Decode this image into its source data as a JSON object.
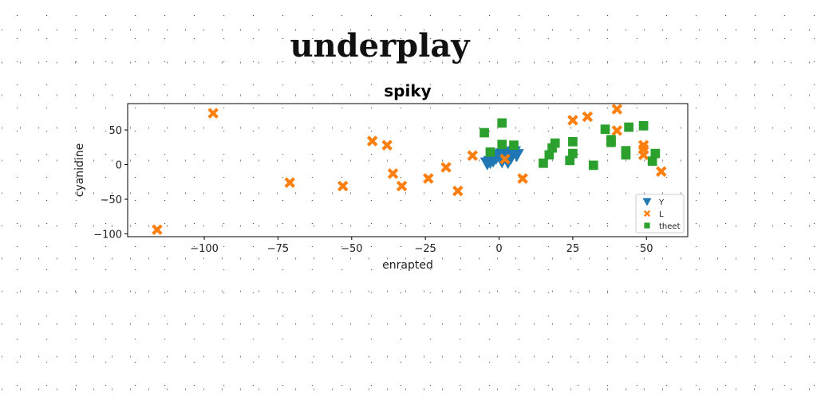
{
  "suptitle": "underplay",
  "chart_data": {
    "type": "scatter",
    "title": "spiky",
    "xlabel": "enrapted",
    "ylabel": "cyanidine",
    "xlim": [
      -126,
      64
    ],
    "ylim": [
      -104,
      88
    ],
    "xticks": [
      -100,
      -75,
      -50,
      -25,
      0,
      25,
      50
    ],
    "yticks": [
      -100,
      -50,
      0,
      50
    ],
    "legend_position": "lower-right",
    "series": [
      {
        "name": "Y",
        "marker": "triangle-down",
        "color": "#1f77b4",
        "points": [
          [
            -4,
            2
          ],
          [
            -3,
            4
          ],
          [
            -2,
            6
          ],
          [
            -1,
            10
          ],
          [
            0,
            13
          ],
          [
            1,
            15
          ],
          [
            2,
            12
          ],
          [
            3,
            16
          ],
          [
            4,
            10
          ],
          [
            5,
            18
          ],
          [
            6,
            14
          ],
          [
            3,
            4
          ],
          [
            1,
            5
          ],
          [
            -2,
            12
          ]
        ]
      },
      {
        "name": "L",
        "marker": "x",
        "color": "#ff7f0e",
        "points": [
          [
            -116,
            -94
          ],
          [
            -97,
            74
          ],
          [
            -71,
            -26
          ],
          [
            -53,
            -31
          ],
          [
            -43,
            34
          ],
          [
            -38,
            28
          ],
          [
            -36,
            -13
          ],
          [
            -33,
            -31
          ],
          [
            -24,
            -20
          ],
          [
            -18,
            -4
          ],
          [
            -14,
            -38
          ],
          [
            -9,
            13
          ],
          [
            2,
            8
          ],
          [
            8,
            -20
          ],
          [
            25,
            64
          ],
          [
            30,
            69
          ],
          [
            38,
            34
          ],
          [
            40,
            80
          ],
          [
            40,
            49
          ],
          [
            49,
            28
          ],
          [
            49,
            14
          ],
          [
            49,
            22
          ],
          [
            55,
            -10
          ]
        ]
      },
      {
        "name": "theet",
        "marker": "square",
        "color": "#2ca02c",
        "points": [
          [
            -5,
            46
          ],
          [
            -3,
            18
          ],
          [
            1,
            60
          ],
          [
            1,
            29
          ],
          [
            5,
            28
          ],
          [
            15,
            2
          ],
          [
            17,
            14
          ],
          [
            18,
            24
          ],
          [
            19,
            31
          ],
          [
            24,
            6
          ],
          [
            25,
            33
          ],
          [
            25,
            16
          ],
          [
            32,
            -1
          ],
          [
            36,
            51
          ],
          [
            38,
            36
          ],
          [
            38,
            32
          ],
          [
            43,
            20
          ],
          [
            43,
            14
          ],
          [
            44,
            54
          ],
          [
            49,
            56
          ],
          [
            52,
            5
          ],
          [
            53,
            16
          ]
        ]
      }
    ]
  }
}
